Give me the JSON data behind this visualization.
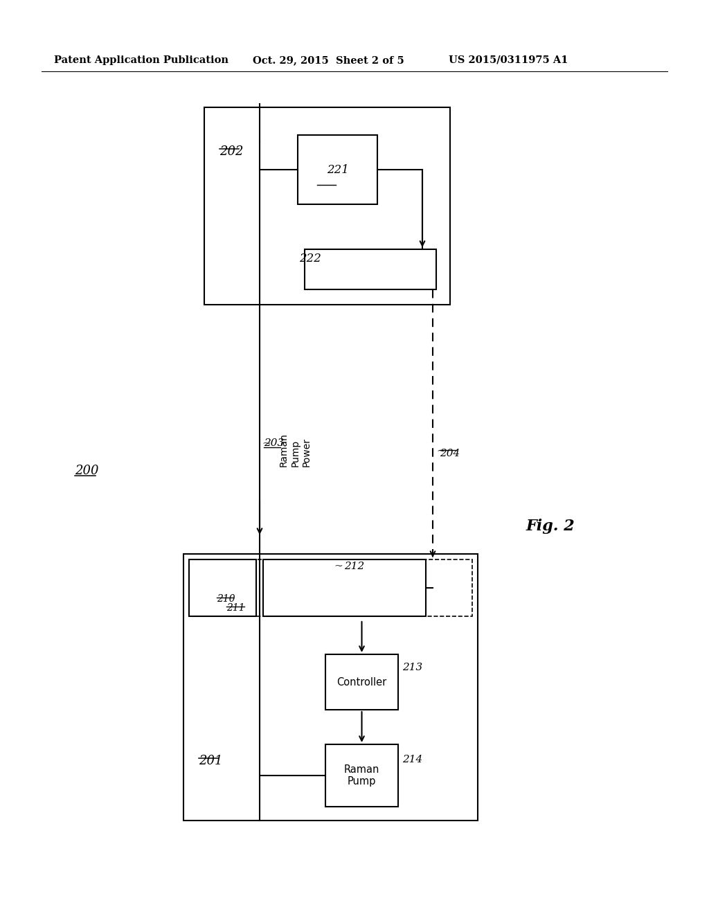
{
  "bg_color": "#ffffff",
  "header_left": "Patent Application Publication",
  "header_mid": "Oct. 29, 2015  Sheet 2 of 5",
  "header_right": "US 2015/0311975 A1",
  "fig_label": "Fig. 2",
  "system_label": "200",
  "box202_label": "202",
  "box221_label": "221",
  "box222_label": "222",
  "box201_label": "201",
  "box210_label": "210",
  "box211_label": "211",
  "box212_label": "212",
  "box213_label": "213",
  "box214_label": "214",
  "controller_text": "Controller",
  "raman_pump_text": "Raman\nPump",
  "raman_pump_power_text": "Raman\nPump\nPower",
  "line203_label": "203",
  "line204_label": "204",
  "lw": 1.5
}
